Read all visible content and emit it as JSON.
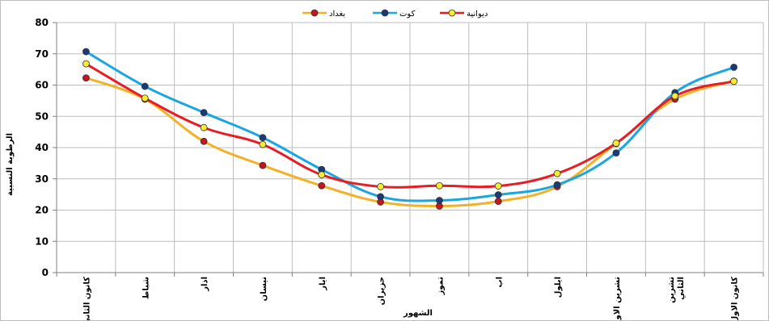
{
  "chart_data": {
    "type": "line",
    "xlabel": "الشهور",
    "ylabel": "الرطوبة النسبية",
    "ylim": [
      0,
      80
    ],
    "yticks": [
      0,
      10,
      20,
      30,
      40,
      50,
      60,
      70,
      80
    ],
    "grid": true,
    "legend_position": "top-center",
    "categories": [
      [
        "كانون الثاني"
      ],
      [
        "شباط"
      ],
      [
        "اذار"
      ],
      [
        "نيسان"
      ],
      [
        "ايار"
      ],
      [
        "حزيران"
      ],
      [
        "تموز"
      ],
      [
        "اب"
      ],
      [
        "ايلول"
      ],
      [
        "تشرين الاول"
      ],
      [
        "تشرين",
        "الثاني"
      ],
      [
        "كانون الاول"
      ]
    ],
    "series": [
      {
        "name": "بغداد",
        "line_color": "#f4b026",
        "marker_color": "#c5161d",
        "values": [
          62.3,
          55.5,
          42.0,
          34.3,
          27.8,
          22.6,
          21.3,
          22.8,
          27.5,
          41.3,
          55.5,
          61.3
        ]
      },
      {
        "name": "كوت",
        "line_color": "#1aa6e0",
        "marker_color": "#1a3a7a",
        "values": [
          70.7,
          59.6,
          51.2,
          43.2,
          33.0,
          24.3,
          23.1,
          24.9,
          28.1,
          38.3,
          57.6,
          65.7
        ]
      },
      {
        "name": "ديوانية",
        "line_color": "#e81c24",
        "marker_color": "#f5ec30",
        "values": [
          66.8,
          55.8,
          46.4,
          41.0,
          31.3,
          27.5,
          27.8,
          27.7,
          31.7,
          41.4,
          56.5,
          61.2
        ]
      }
    ]
  }
}
